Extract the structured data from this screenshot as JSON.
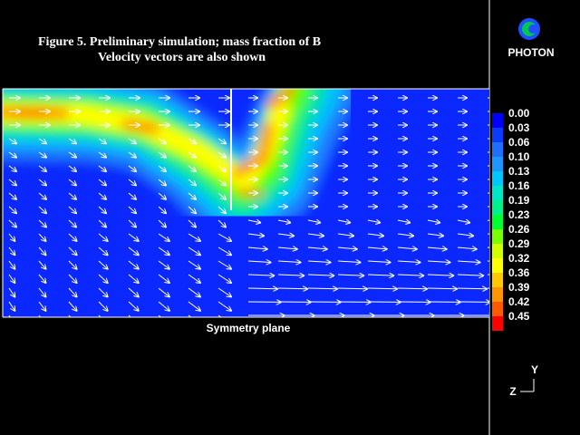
{
  "title": {
    "line1": "Figure  5. Preliminary simulation; mass fraction of B",
    "line2": "Velocity vectors are also shown"
  },
  "logo": "PHOTON",
  "colorbar": {
    "labels": [
      "0.00",
      "0.03",
      "0.06",
      "0.10",
      "0.13",
      "0.16",
      "0.19",
      "0.23",
      "0.26",
      "0.29",
      "0.32",
      "0.36",
      "0.39",
      "0.42",
      "0.45"
    ],
    "colors": [
      "#0000ff",
      "#0a3cff",
      "#1e6eff",
      "#1e96ff",
      "#00c8ff",
      "#00e6c8",
      "#00f08c",
      "#00ff32",
      "#78ff00",
      "#d2ff00",
      "#ffff00",
      "#ffc800",
      "#ff9600",
      "#ff5a00",
      "#ff0000"
    ]
  },
  "plot": {
    "caption": "Symmetry plane"
  },
  "axes": {
    "y": "Y",
    "z": "Z"
  }
}
